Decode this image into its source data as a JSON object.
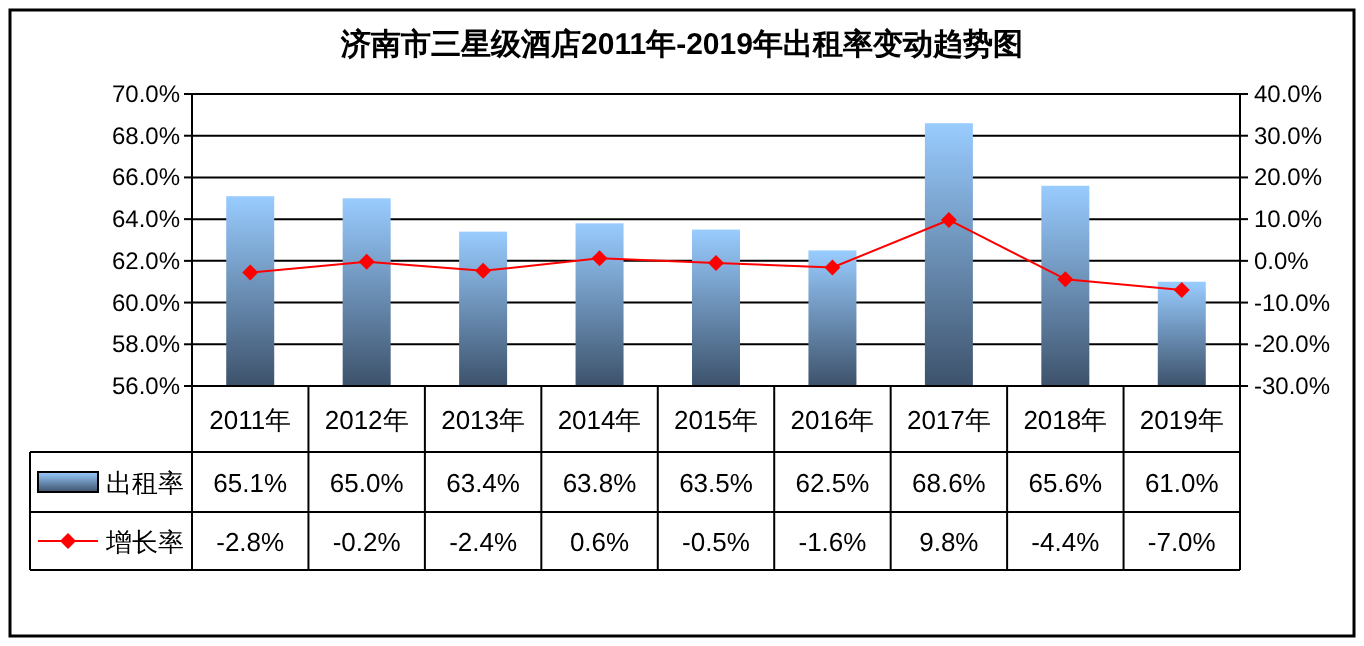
{
  "chart_data": {
    "type": "bar",
    "title": "济南市三星级酒店2011年-2019年出租率变动趋势图",
    "categories": [
      "2011年",
      "2012年",
      "2013年",
      "2014年",
      "2015年",
      "2016年",
      "2017年",
      "2018年",
      "2019年"
    ],
    "series": [
      {
        "name": "出租率",
        "color": "#99ccff",
        "values": [
          65.1,
          65.0,
          63.4,
          63.8,
          63.5,
          62.5,
          68.6,
          65.6,
          61.0
        ],
        "value_labels": [
          "65.1%",
          "65.0%",
          "63.4%",
          "63.8%",
          "63.5%",
          "62.5%",
          "68.6%",
          "65.6%",
          "61.0%"
        ]
      },
      {
        "name": "增长率",
        "type": "line",
        "axis": "y2",
        "color": "#ff0000",
        "marker": "diamond",
        "values": [
          -2.8,
          -0.2,
          -2.4,
          0.6,
          -0.5,
          -1.6,
          9.8,
          -4.4,
          -7.0
        ],
        "value_labels": [
          "-2.8%",
          "-0.2%",
          "-2.4%",
          "0.6%",
          "-0.5%",
          "-1.6%",
          "9.8%",
          "-4.4%",
          "-7.0%"
        ]
      }
    ],
    "ylim": [
      56,
      70
    ],
    "yticks": [
      {
        "value": 56,
        "label": "56.0%"
      },
      {
        "value": 58,
        "label": "58.0%"
      },
      {
        "value": 60,
        "label": "60.0%"
      },
      {
        "value": 62,
        "label": "62.0%"
      },
      {
        "value": 64,
        "label": "64.0%"
      },
      {
        "value": 66,
        "label": "66.0%"
      },
      {
        "value": 68,
        "label": "68.0%"
      },
      {
        "value": 70,
        "label": "70.0%"
      }
    ],
    "y2lim": [
      -30,
      40
    ],
    "y2ticks": [
      {
        "value": -30,
        "label": "-30.0%"
      },
      {
        "value": -20,
        "label": "-20.0%"
      },
      {
        "value": -10,
        "label": "-10.0%"
      },
      {
        "value": 0,
        "label": "0.0%"
      },
      {
        "value": 10,
        "label": "10.0%"
      },
      {
        "value": 20,
        "label": "20.0%"
      },
      {
        "value": 30,
        "label": "30.0%"
      },
      {
        "value": 40,
        "label": "40.0%"
      }
    ],
    "grid": "y",
    "legend": "bottom left"
  }
}
